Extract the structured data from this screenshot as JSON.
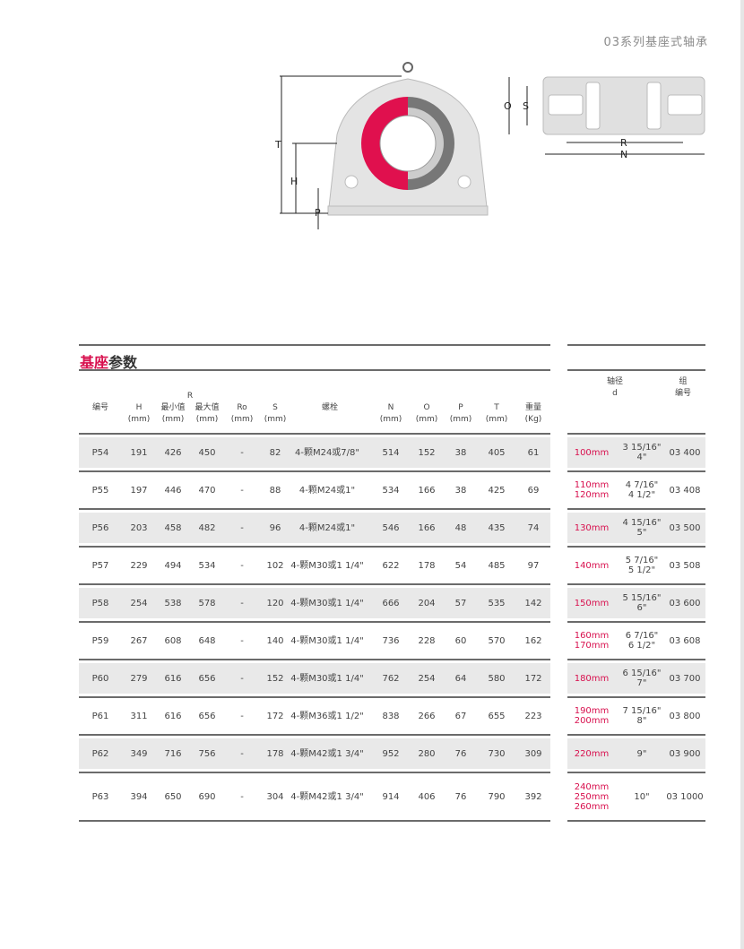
{
  "page_title": "03系列基座式轴承",
  "diagram_labels": {
    "T": "T",
    "H": "H",
    "P": "P",
    "O": "O",
    "S": "S",
    "R": "R",
    "N": "N"
  },
  "section": {
    "title_accent": "基座",
    "title_rest": "参数"
  },
  "colors": {
    "accent": "#d8104e",
    "row_shade": "#e9e9e9",
    "rule": "#6b6b6b"
  },
  "headers": {
    "code": "编号",
    "H": "H",
    "R": "R",
    "r_min": "最小值",
    "r_max": "最大值",
    "Ro": "Ro",
    "S": "S",
    "bolt": "螺栓",
    "N": "N",
    "O": "O",
    "P": "P",
    "T": "T",
    "weight": "重量",
    "mm": "(mm)",
    "kg": "(Kg)",
    "shaft": "轴径",
    "d": "d",
    "group_1": "组",
    "group_2": "编号"
  },
  "rows": [
    {
      "code": "P54",
      "H": "191",
      "r_min": "426",
      "r_max": "450",
      "Ro": "-",
      "S": "82",
      "bolt": "4-颗M24或7/8\"",
      "N": "514",
      "O": "152",
      "P": "38",
      "T": "405",
      "weight": "61",
      "d_mm": [
        "100mm"
      ],
      "d_in": [
        "3 15/16\"",
        "4\""
      ],
      "group": "03 400"
    },
    {
      "code": "P55",
      "H": "197",
      "r_min": "446",
      "r_max": "470",
      "Ro": "-",
      "S": "88",
      "bolt": "4-颗M24或1\"",
      "N": "534",
      "O": "166",
      "P": "38",
      "T": "425",
      "weight": "69",
      "d_mm": [
        "110mm",
        "120mm"
      ],
      "d_in": [
        "4 7/16\"",
        "4 1/2\""
      ],
      "group": "03 408"
    },
    {
      "code": "P56",
      "H": "203",
      "r_min": "458",
      "r_max": "482",
      "Ro": "-",
      "S": "96",
      "bolt": "4-颗M24或1\"",
      "N": "546",
      "O": "166",
      "P": "48",
      "T": "435",
      "weight": "74",
      "d_mm": [
        "130mm"
      ],
      "d_in": [
        "4 15/16\"",
        "5\""
      ],
      "group": "03 500"
    },
    {
      "code": "P57",
      "H": "229",
      "r_min": "494",
      "r_max": "534",
      "Ro": "-",
      "S": "102",
      "bolt": "4-颗M30或1 1/4\"",
      "N": "622",
      "O": "178",
      "P": "54",
      "T": "485",
      "weight": "97",
      "d_mm": [
        "140mm"
      ],
      "d_in": [
        "5 7/16\"",
        "5 1/2\""
      ],
      "group": "03 508"
    },
    {
      "code": "P58",
      "H": "254",
      "r_min": "538",
      "r_max": "578",
      "Ro": "-",
      "S": "120",
      "bolt": "4-颗M30或1 1/4\"",
      "N": "666",
      "O": "204",
      "P": "57",
      "T": "535",
      "weight": "142",
      "d_mm": [
        "150mm"
      ],
      "d_in": [
        "5 15/16\"",
        "6\""
      ],
      "group": "03 600"
    },
    {
      "code": "P59",
      "H": "267",
      "r_min": "608",
      "r_max": "648",
      "Ro": "-",
      "S": "140",
      "bolt": "4-颗M30或1 1/4\"",
      "N": "736",
      "O": "228",
      "P": "60",
      "T": "570",
      "weight": "162",
      "d_mm": [
        "160mm",
        "170mm"
      ],
      "d_in": [
        "6 7/16\"",
        "6 1/2\""
      ],
      "group": "03 608"
    },
    {
      "code": "P60",
      "H": "279",
      "r_min": "616",
      "r_max": "656",
      "Ro": "-",
      "S": "152",
      "bolt": "4-颗M30或1 1/4\"",
      "N": "762",
      "O": "254",
      "P": "64",
      "T": "580",
      "weight": "172",
      "d_mm": [
        "180mm"
      ],
      "d_in": [
        "6 15/16\"",
        "7\""
      ],
      "group": "03 700"
    },
    {
      "code": "P61",
      "H": "311",
      "r_min": "616",
      "r_max": "656",
      "Ro": "-",
      "S": "172",
      "bolt": "4-颗M36或1 1/2\"",
      "N": "838",
      "O": "266",
      "P": "67",
      "T": "655",
      "weight": "223",
      "d_mm": [
        "190mm",
        "200mm"
      ],
      "d_in": [
        "7 15/16\"",
        "8\""
      ],
      "group": "03 800"
    },
    {
      "code": "P62",
      "H": "349",
      "r_min": "716",
      "r_max": "756",
      "Ro": "-",
      "S": "178",
      "bolt": "4-颗M42或1 3/4\"",
      "N": "952",
      "O": "280",
      "P": "76",
      "T": "730",
      "weight": "309",
      "d_mm": [
        "220mm"
      ],
      "d_in": [
        "9\""
      ],
      "group": "03 900"
    },
    {
      "code": "P63",
      "H": "394",
      "r_min": "650",
      "r_max": "690",
      "Ro": "-",
      "S": "304",
      "bolt": "4-颗M42或1 3/4\"",
      "N": "914",
      "O": "406",
      "P": "76",
      "T": "790",
      "weight": "392",
      "d_mm": [
        "240mm",
        "250mm",
        "260mm"
      ],
      "d_in": [
        "10\""
      ],
      "group": "03 1000"
    }
  ]
}
